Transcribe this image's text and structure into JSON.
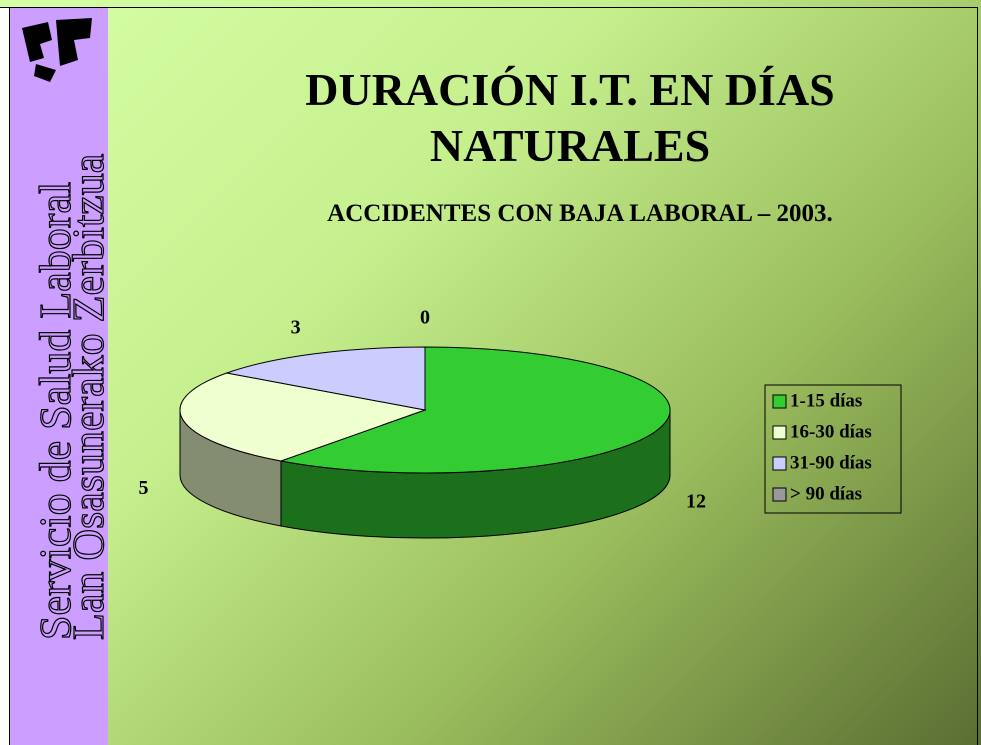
{
  "sidebar": {
    "lines": [
      "Servicio de Salud Laboral",
      "Lan Osasunerako Zerbitzua"
    ]
  },
  "chart_data": {
    "type": "pie3d",
    "title": "DURACIÓN I.T. EN DÍAS NATURALES",
    "subtitle": "ACCIDENTES CON BAJA LABORAL – 2003.",
    "categories": [
      "1-15 días",
      "16-30 días",
      "31-90 días",
      "> 90 días"
    ],
    "values": [
      12,
      5,
      3,
      0
    ],
    "colors": [
      "#33cc33",
      "#f0ffd0",
      "#ccccff",
      "#999999"
    ],
    "legend": "right"
  }
}
